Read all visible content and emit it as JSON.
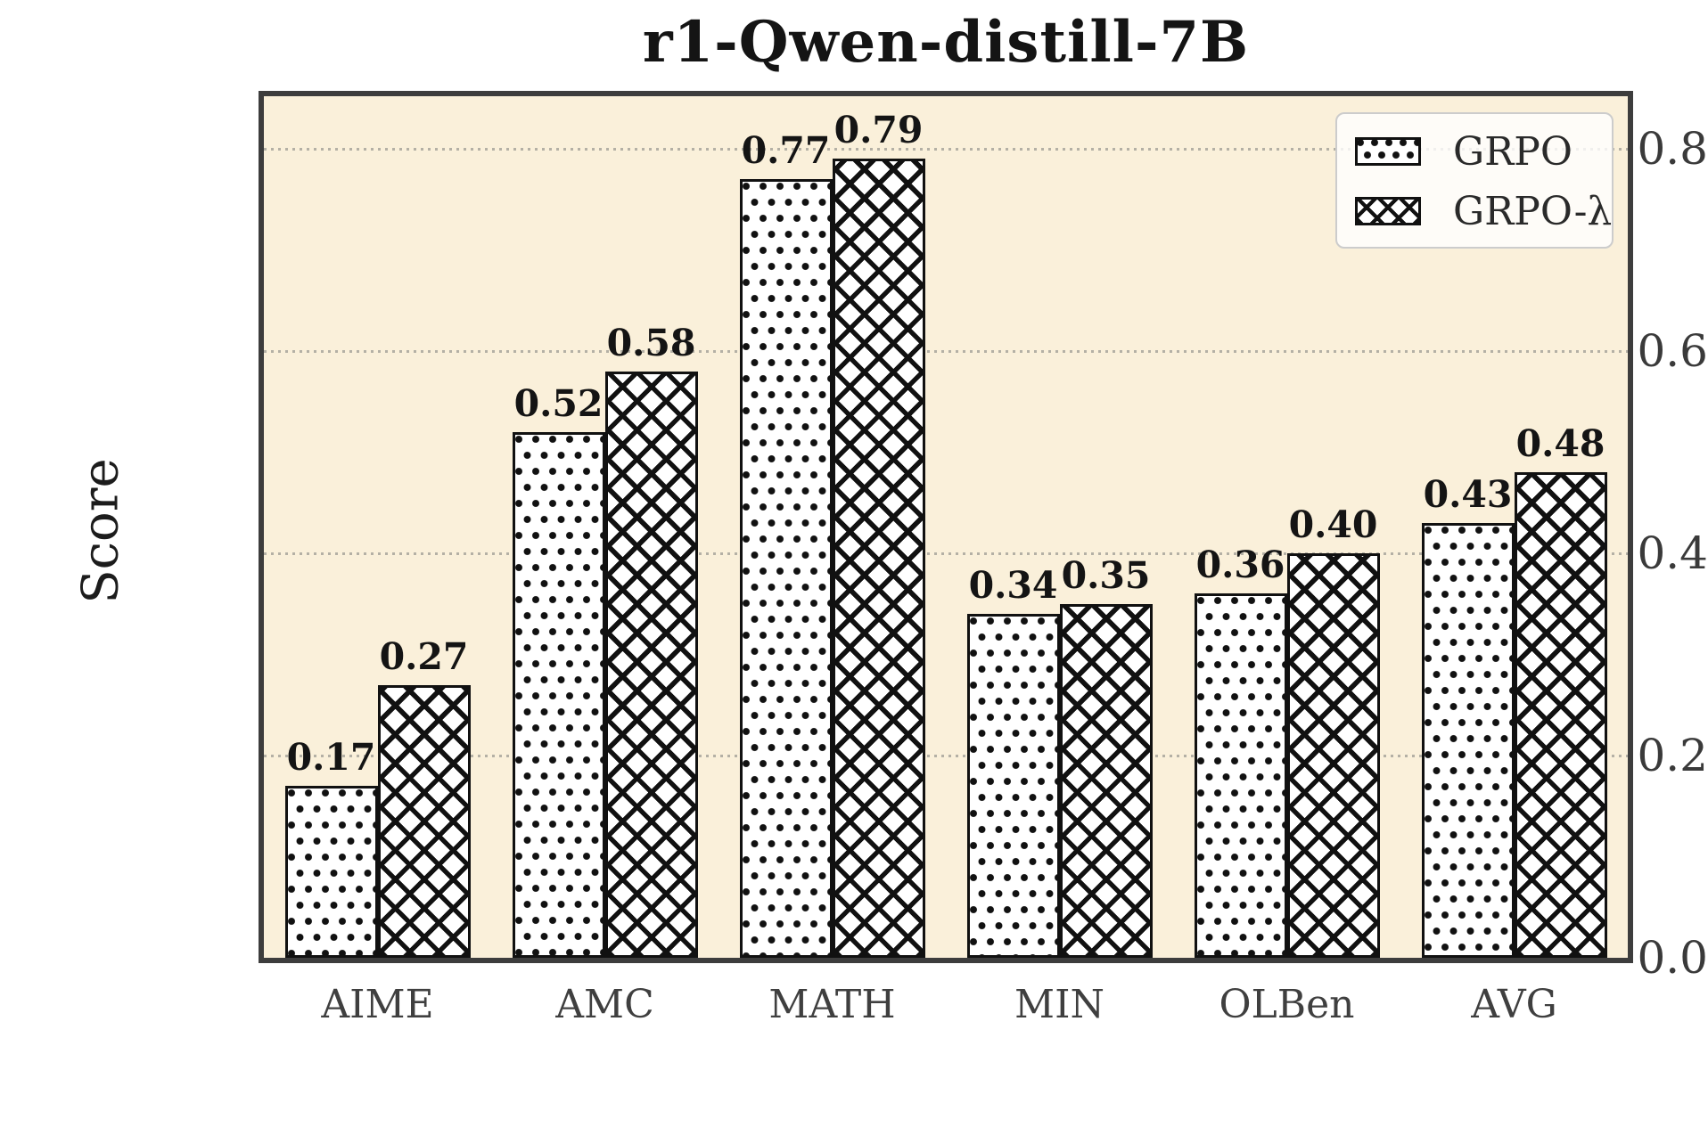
{
  "title": "r1-Qwen-distill-7B",
  "ylabel": "Score",
  "colors": {
    "plot_background": "#faf0da",
    "figure_background": "#ffffff",
    "axis_frame": "#3d3d3d",
    "bar_fill": "#ffffff",
    "hatch": "#111111",
    "gridline": "#b4b0a5",
    "tick_text": "#3a3a3a",
    "title_text": "#141414"
  },
  "chart_data": {
    "type": "bar",
    "title": "r1-Qwen-distill-7B",
    "xlabel": "",
    "ylabel": "Score",
    "categories": [
      "AIME",
      "AMC",
      "MATH",
      "MIN",
      "OLBen",
      "AVG"
    ],
    "series": [
      {
        "name": "GRPO",
        "hatch": "dots",
        "values": [
          0.17,
          0.52,
          0.77,
          0.34,
          0.36,
          0.43
        ],
        "labels": [
          "0.17",
          "0.52",
          "0.77",
          "0.34",
          "0.36",
          "0.43"
        ]
      },
      {
        "name": "GRPO-λ",
        "hatch": "cross",
        "values": [
          0.27,
          0.58,
          0.79,
          0.35,
          0.4,
          0.48
        ],
        "labels": [
          "0.27",
          "0.58",
          "0.79",
          "0.35",
          "0.40",
          "0.48"
        ]
      }
    ],
    "ylim": [
      0,
      0.852
    ],
    "yticks": [
      "0.0",
      "0.2",
      "0.4",
      "0.6",
      "0.8"
    ],
    "grid": "dotted-horizontal",
    "legend_position": "upper-right",
    "value_labels": true
  },
  "legend": {
    "items": [
      {
        "label": "GRPO",
        "hatch": "dots"
      },
      {
        "label": "GRPO-λ",
        "hatch": "cross"
      }
    ]
  }
}
